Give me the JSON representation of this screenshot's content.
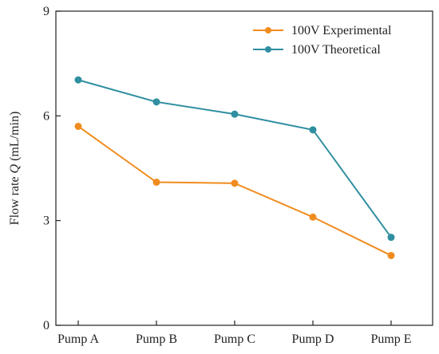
{
  "chart_data": {
    "type": "line",
    "categories": [
      "Pump A",
      "Pump B",
      "Pump C",
      "Pump D",
      "Pump E"
    ],
    "series": [
      {
        "name": "100V Experimental",
        "color": "#f08c1e",
        "values": [
          5.7,
          4.1,
          4.07,
          3.1,
          2.0
        ]
      },
      {
        "name": "100V Theoretical",
        "color": "#2f8fa0",
        "values": [
          7.03,
          6.4,
          6.05,
          5.6,
          2.52
        ]
      }
    ],
    "ylabel": "Flow rate Q (mL/min)",
    "ylabel_prefix": "Flow rate ",
    "ylabel_symbol": "Q",
    "ylabel_unit": " (mL/min)",
    "ylim": [
      0,
      9
    ],
    "yticks": [
      0,
      3,
      6,
      9
    ],
    "grid": false,
    "legend": "top-right"
  }
}
